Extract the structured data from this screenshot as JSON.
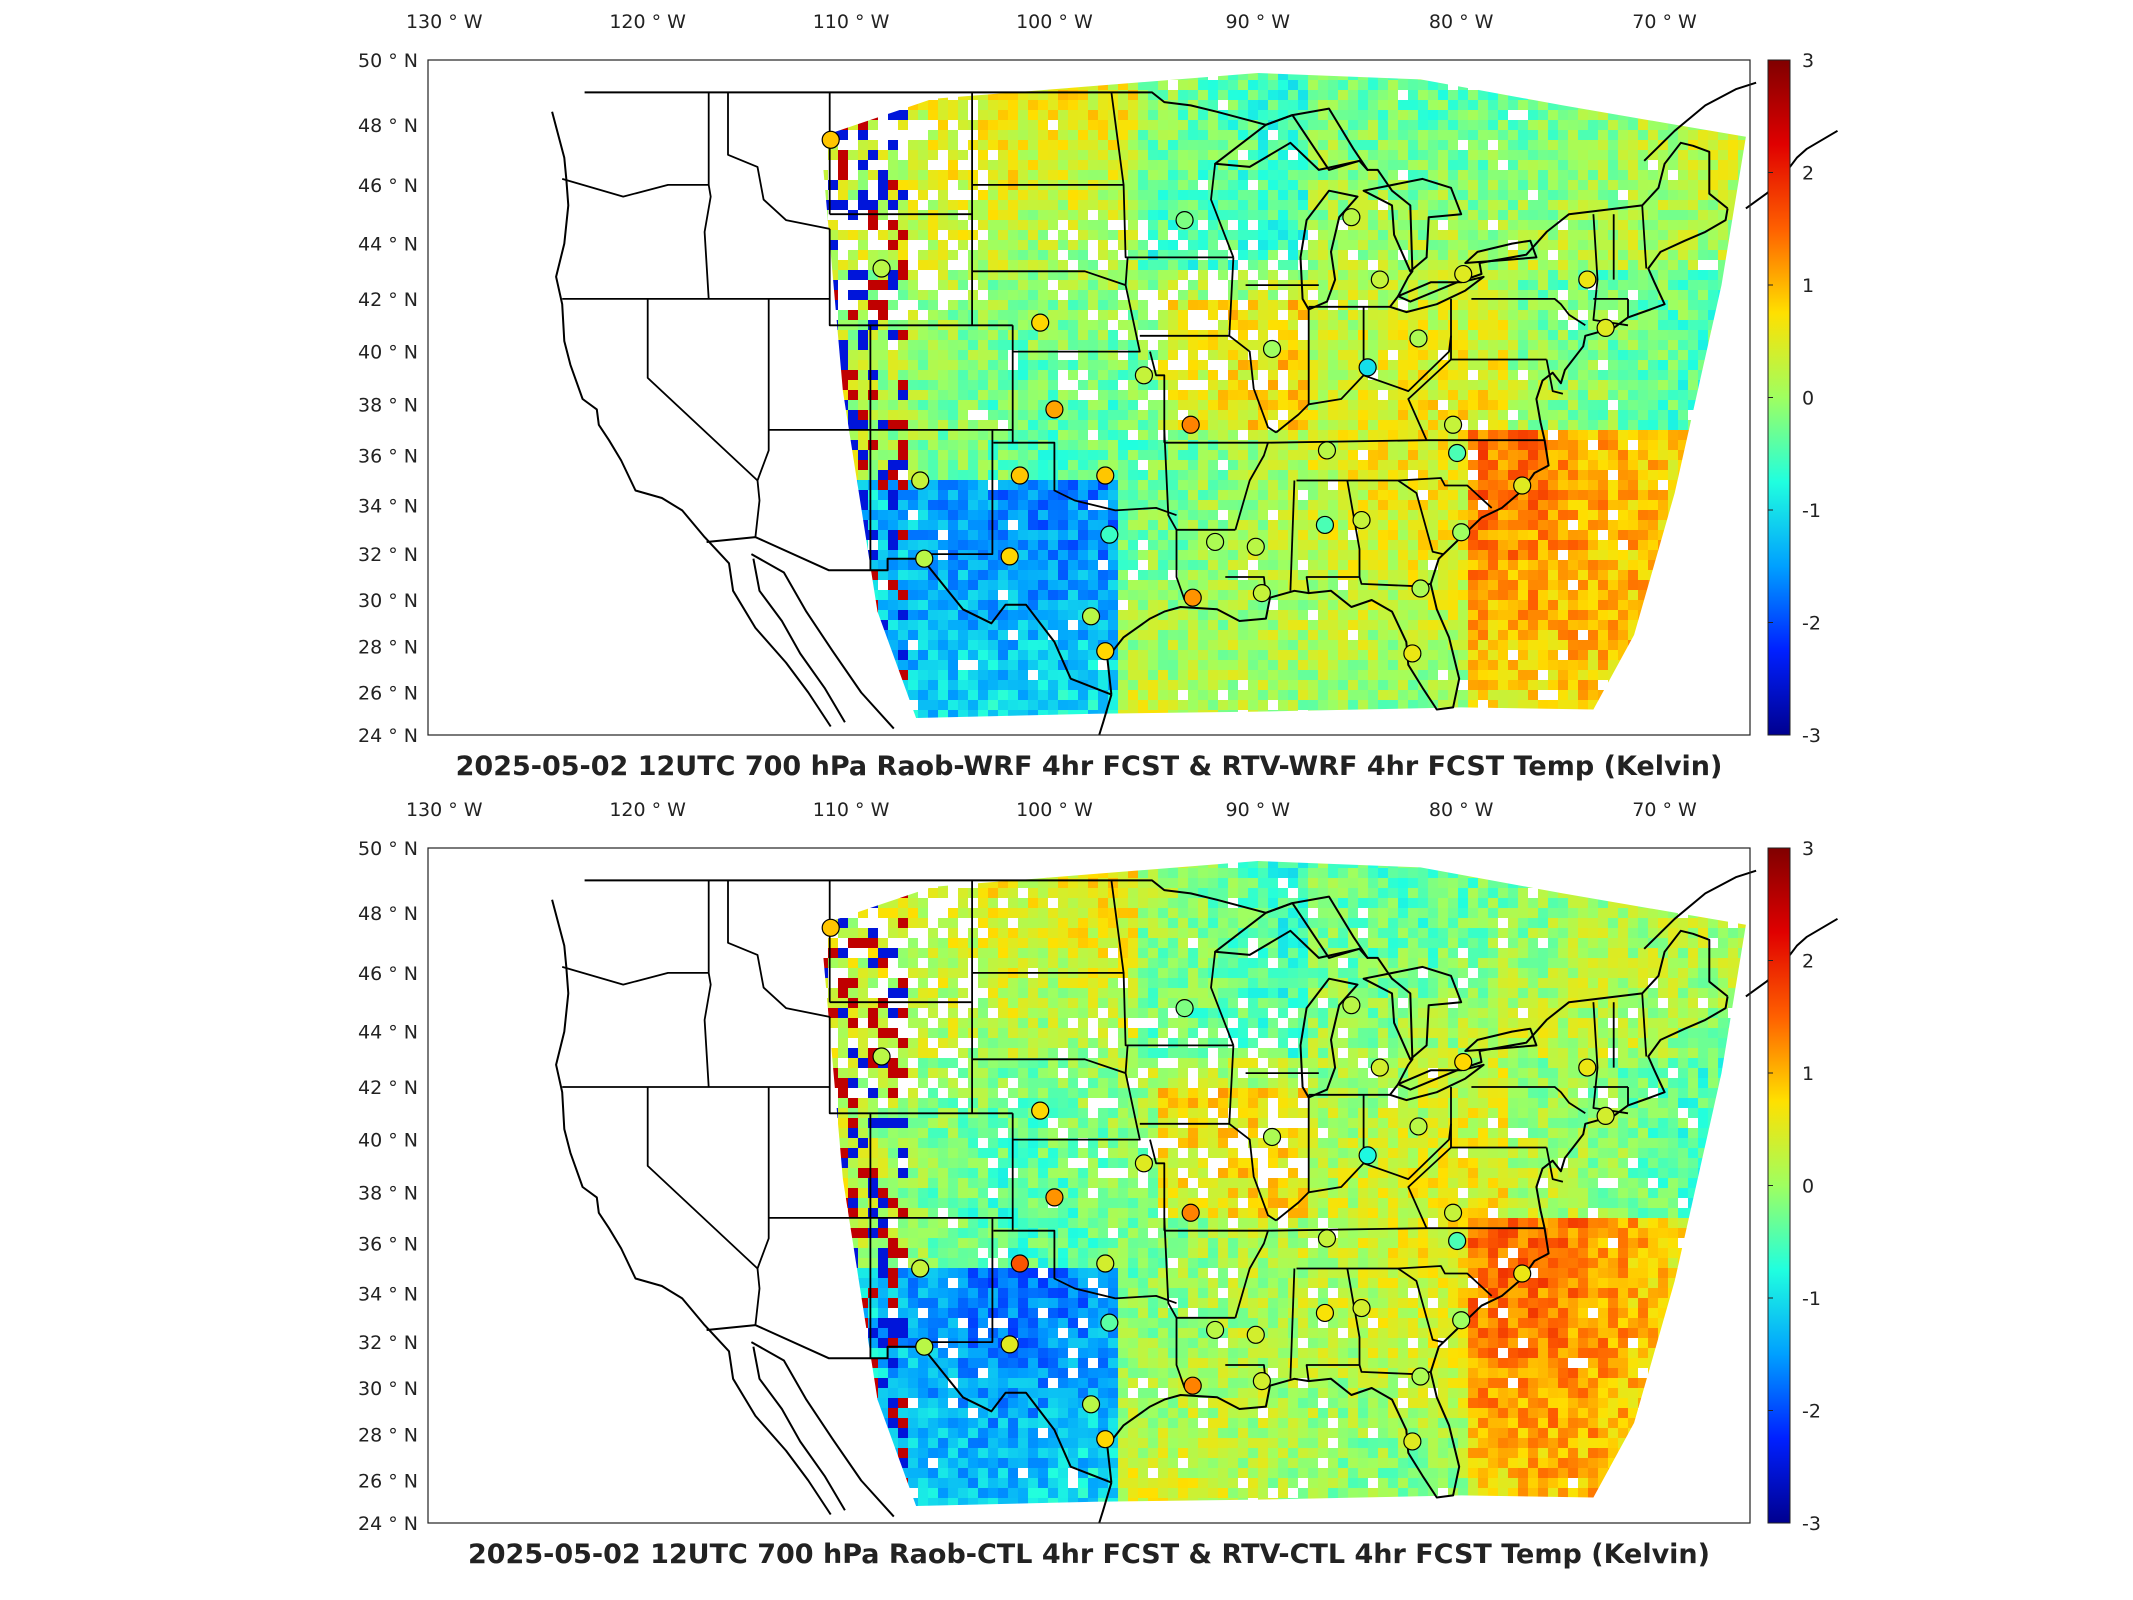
{
  "colorbar": {
    "ticks": [
      "3",
      "2",
      "1",
      "0",
      "-1",
      "-2",
      "-3"
    ],
    "colors": [
      "#00008f",
      "#0020ff",
      "#00a0ff",
      "#20ffdf",
      "#9fff60",
      "#ffe000",
      "#ff6000",
      "#e00000",
      "#800000"
    ]
  },
  "lon_labels": [
    "130",
    "120",
    "110",
    "100",
    "90",
    "80",
    "70"
  ],
  "lon_suffix": "W",
  "lat_labels": [
    "50",
    "48",
    "46",
    "44",
    "42",
    "40",
    "38",
    "36",
    "34",
    "32",
    "30",
    "28",
    "26",
    "24"
  ],
  "lat_suffix": "N",
  "degree_symbol": "°",
  "panels": [
    {
      "title": "2025-05-02 12UTC 700 hPa Raob-WRF 4hr FCST & RTV-WRF 4hr FCST Temp (Kelvin)",
      "stations": [
        {
          "lon": -111.0,
          "lat": 47.5,
          "value": 0.9
        },
        {
          "lon": -108.5,
          "lat": 43.1,
          "value": 0.2
        },
        {
          "lon": -100.7,
          "lat": 41.1,
          "value": 0.8
        },
        {
          "lon": -100.0,
          "lat": 37.8,
          "value": 1.1
        },
        {
          "lon": -101.7,
          "lat": 35.2,
          "value": 0.9
        },
        {
          "lon": -97.5,
          "lat": 35.2,
          "value": 0.9
        },
        {
          "lon": -106.6,
          "lat": 35.0,
          "value": 0.3
        },
        {
          "lon": -106.4,
          "lat": 31.8,
          "value": 0.2
        },
        {
          "lon": -102.2,
          "lat": 31.9,
          "value": 0.8
        },
        {
          "lon": -97.3,
          "lat": 32.8,
          "value": -0.6
        },
        {
          "lon": -98.2,
          "lat": 29.3,
          "value": 0.2
        },
        {
          "lon": -97.5,
          "lat": 27.8,
          "value": 0.8
        },
        {
          "lon": -93.2,
          "lat": 30.1,
          "value": 1.2
        },
        {
          "lon": -92.1,
          "lat": 32.5,
          "value": 0.1
        },
        {
          "lon": -93.3,
          "lat": 37.2,
          "value": 1.3
        },
        {
          "lon": -95.6,
          "lat": 39.1,
          "value": 0.3
        },
        {
          "lon": -93.6,
          "lat": 44.8,
          "value": -0.2
        },
        {
          "lon": -89.3,
          "lat": 40.1,
          "value": 0.0
        },
        {
          "lon": -90.1,
          "lat": 32.3,
          "value": 0.2
        },
        {
          "lon": -86.7,
          "lat": 33.2,
          "value": -0.5
        },
        {
          "lon": -84.9,
          "lat": 33.4,
          "value": 0.3
        },
        {
          "lon": -86.6,
          "lat": 36.2,
          "value": 0.2
        },
        {
          "lon": -84.6,
          "lat": 39.4,
          "value": -1.0
        },
        {
          "lon": -85.4,
          "lat": 44.9,
          "value": 0.2
        },
        {
          "lon": -84.0,
          "lat": 42.7,
          "value": 0.3
        },
        {
          "lon": -82.1,
          "lat": 40.5,
          "value": 0.1
        },
        {
          "lon": -79.9,
          "lat": 42.9,
          "value": 0.5
        },
        {
          "lon": -73.8,
          "lat": 42.7,
          "value": 0.6
        },
        {
          "lon": -72.9,
          "lat": 40.9,
          "value": 0.5
        },
        {
          "lon": -80.4,
          "lat": 37.2,
          "value": 0.3
        },
        {
          "lon": -80.2,
          "lat": 36.1,
          "value": -0.5
        },
        {
          "lon": -77.0,
          "lat": 34.8,
          "value": 0.5
        },
        {
          "lon": -80.0,
          "lat": 32.9,
          "value": 0.0
        },
        {
          "lon": -82.0,
          "lat": 30.5,
          "value": 0.1
        },
        {
          "lon": -82.4,
          "lat": 27.7,
          "value": 0.6
        },
        {
          "lon": -89.8,
          "lat": 30.3,
          "value": 0.3
        }
      ]
    },
    {
      "title": "2025-05-02 12UTC 700 hPa Raob-CTL 4hr FCST & RTV-CTL 4hr FCST Temp (Kelvin)",
      "stations": [
        {
          "lon": -111.0,
          "lat": 47.5,
          "value": 0.9
        },
        {
          "lon": -108.5,
          "lat": 43.1,
          "value": 0.2
        },
        {
          "lon": -100.7,
          "lat": 41.1,
          "value": 0.8
        },
        {
          "lon": -100.0,
          "lat": 37.8,
          "value": 1.2
        },
        {
          "lon": -101.7,
          "lat": 35.2,
          "value": 1.6
        },
        {
          "lon": -97.5,
          "lat": 35.2,
          "value": 0.4
        },
        {
          "lon": -106.6,
          "lat": 35.0,
          "value": 0.3
        },
        {
          "lon": -106.4,
          "lat": 31.8,
          "value": 0.2
        },
        {
          "lon": -102.2,
          "lat": 31.9,
          "value": 0.5
        },
        {
          "lon": -97.3,
          "lat": 32.8,
          "value": -0.4
        },
        {
          "lon": -98.2,
          "lat": 29.3,
          "value": 0.2
        },
        {
          "lon": -97.5,
          "lat": 27.8,
          "value": 0.8
        },
        {
          "lon": -93.2,
          "lat": 30.1,
          "value": 1.3
        },
        {
          "lon": -92.1,
          "lat": 32.5,
          "value": 0.2
        },
        {
          "lon": -93.3,
          "lat": 37.2,
          "value": 1.3
        },
        {
          "lon": -95.6,
          "lat": 39.1,
          "value": 0.5
        },
        {
          "lon": -93.6,
          "lat": 44.8,
          "value": -0.2
        },
        {
          "lon": -89.3,
          "lat": 40.1,
          "value": 0.1
        },
        {
          "lon": -90.1,
          "lat": 32.3,
          "value": 0.4
        },
        {
          "lon": -86.7,
          "lat": 33.2,
          "value": 0.7
        },
        {
          "lon": -84.9,
          "lat": 33.4,
          "value": 0.4
        },
        {
          "lon": -86.6,
          "lat": 36.2,
          "value": 0.3
        },
        {
          "lon": -84.6,
          "lat": 39.4,
          "value": -0.8
        },
        {
          "lon": -85.4,
          "lat": 44.9,
          "value": 0.2
        },
        {
          "lon": -84.0,
          "lat": 42.7,
          "value": 0.4
        },
        {
          "lon": -82.1,
          "lat": 40.5,
          "value": 0.2
        },
        {
          "lon": -79.9,
          "lat": 42.9,
          "value": 0.8
        },
        {
          "lon": -73.8,
          "lat": 42.7,
          "value": 0.6
        },
        {
          "lon": -72.9,
          "lat": 40.9,
          "value": 0.4
        },
        {
          "lon": -80.4,
          "lat": 37.2,
          "value": 0.3
        },
        {
          "lon": -80.2,
          "lat": 36.1,
          "value": -0.5
        },
        {
          "lon": -77.0,
          "lat": 34.8,
          "value": 0.6
        },
        {
          "lon": -80.0,
          "lat": 32.9,
          "value": 0.0
        },
        {
          "lon": -82.0,
          "lat": 30.5,
          "value": 0.1
        },
        {
          "lon": -82.4,
          "lat": 27.7,
          "value": 0.5
        },
        {
          "lon": -89.8,
          "lat": 30.3,
          "value": 0.4
        }
      ]
    }
  ]
}
